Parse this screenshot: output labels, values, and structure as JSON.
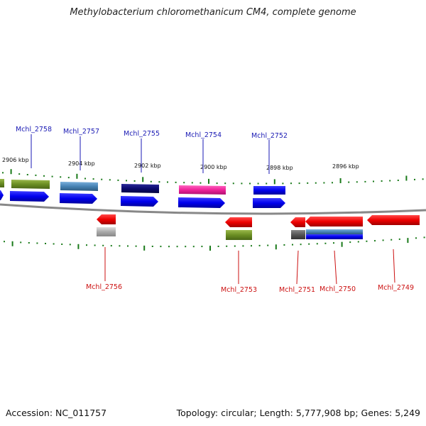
{
  "title": "Methylobacterium chloromethanicum CM4, complete genome",
  "footer": {
    "accession": "Accession: NC_011757",
    "summary": "Topology: circular; Length: 5,777,908 bp; Genes: 5,249"
  },
  "scale_labels": [
    "2906 kbp",
    "2904 kbp",
    "2902 kbp",
    "2900 kbp",
    "2898 kbp",
    "2896 kbp"
  ],
  "genes_top": [
    "Mchl_2758",
    "Mchl_2757",
    "Mchl_2755",
    "Mchl_2754",
    "Mchl_2752"
  ],
  "genes_bottom": [
    "Mchl_2756",
    "Mchl_2753",
    "Mchl_2751",
    "Mchl_2750",
    "Mchl_2749"
  ],
  "colors": {
    "forward_cds": "#0000ee",
    "reverse_cds": "#ee0000",
    "olive": "#6b8e23",
    "steelblue": "#4682b4",
    "navy": "#0a0a6e",
    "magenta": "#ee2299",
    "gray": "#aaaaaa",
    "darkgray": "#555555",
    "tick": "#1a7a1a",
    "backbone": "#888888",
    "top_label": "#1a1ab4",
    "bottom_label": "#cc1111"
  }
}
